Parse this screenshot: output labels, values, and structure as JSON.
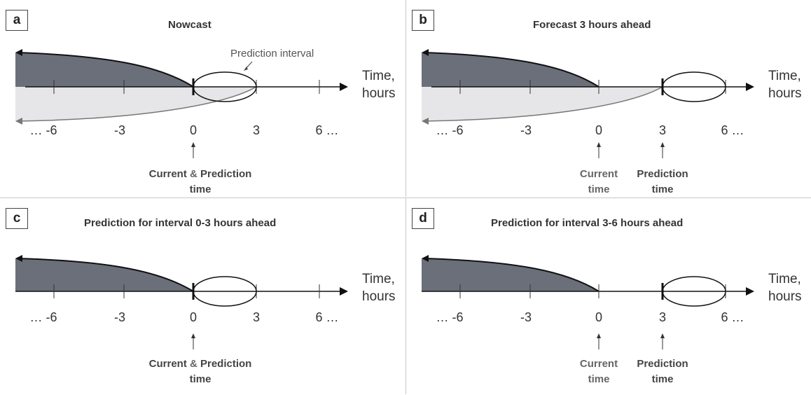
{
  "colors": {
    "past_fill": "#6b6f7a",
    "lower_fill": "#e6e6e8",
    "axis": "#111111"
  },
  "panels": [
    {
      "id": "a",
      "badge": "a",
      "title": "Nowcast",
      "axis_label_1": "Time,",
      "axis_label_2": "hours",
      "ticks": [
        "… -6",
        "-3",
        "0",
        "3",
        "6 …"
      ],
      "pred_interval_label": "Prediction interval",
      "marker_combined_a": "Current",
      "marker_combined_amp": " & ",
      "marker_combined_b": "Prediction",
      "marker_combined_time": "time"
    },
    {
      "id": "b",
      "badge": "b",
      "title": "Forecast 3 hours ahead",
      "axis_label_1": "Time,",
      "axis_label_2": "hours",
      "ticks": [
        "… -6",
        "-3",
        "0",
        "3",
        "6 …"
      ],
      "marker_current": "Current",
      "marker_current_time": "time",
      "marker_prediction": "Prediction",
      "marker_prediction_time": "time"
    },
    {
      "id": "c",
      "badge": "c",
      "title": "Prediction for interval 0-3 hours ahead",
      "axis_label_1": "Time,",
      "axis_label_2": "hours",
      "ticks": [
        "… -6",
        "-3",
        "0",
        "3",
        "6 …"
      ],
      "marker_combined_a": "Current",
      "marker_combined_amp": " & ",
      "marker_combined_b": "Prediction",
      "marker_combined_time": "time"
    },
    {
      "id": "d",
      "badge": "d",
      "title": "Prediction for interval 3-6 hours ahead",
      "axis_label_1": "Time,",
      "axis_label_2": "hours",
      "ticks": [
        "… -6",
        "-3",
        "0",
        "3",
        "6 …"
      ],
      "marker_current": "Current",
      "marker_current_time": "time",
      "marker_prediction": "Prediction",
      "marker_prediction_time": "time"
    }
  ]
}
